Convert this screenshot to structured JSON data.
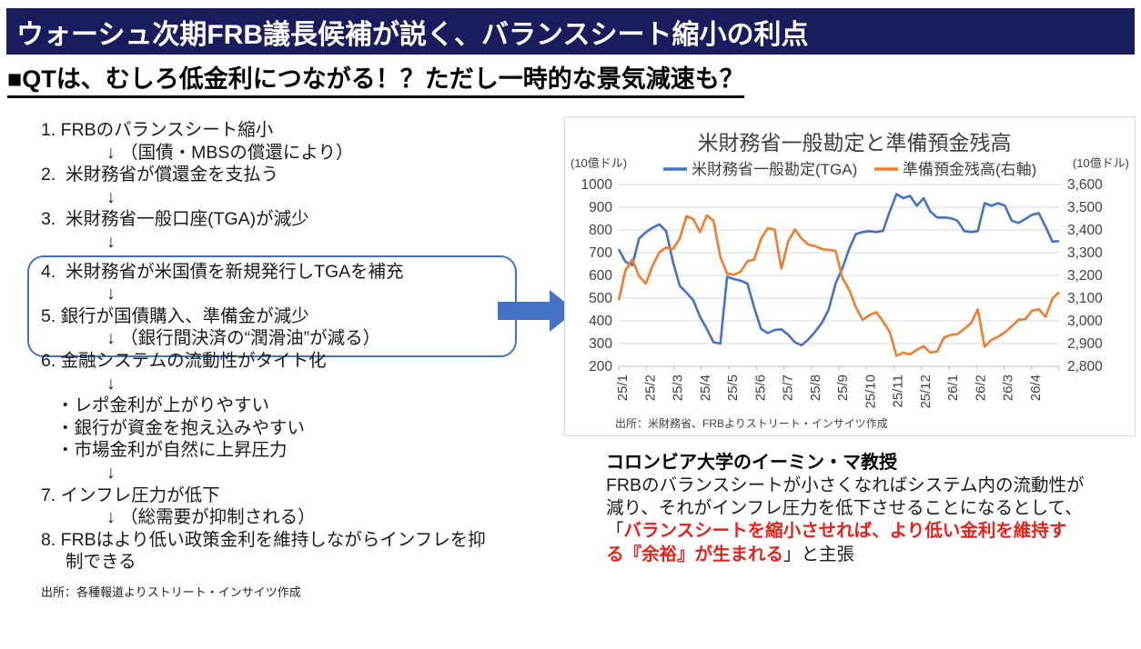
{
  "header": {
    "title": "ウォーシュ次期FRB議長候補が説く、バランスシート縮小の利点",
    "bar_color": "#1b1c5e",
    "subtitle": "■QTは、むしろ低金利につながる！？ただし一時的な景気減速も？"
  },
  "flow": {
    "highlight_box_color": "#4472C4",
    "arrow_color": "#4472C4",
    "lines": [
      {
        "text": "1. FRBのバランスシート縮小",
        "indent": 0,
        "gap": false
      },
      {
        "text": "↓ （国債・MBSの償還により）",
        "indent": 1,
        "gap": false
      },
      {
        "text": "2.  米財務省が償還金を支払う",
        "indent": 0,
        "gap": false
      },
      {
        "text": "↓",
        "indent": 1,
        "gap": false
      },
      {
        "text": "3.  米財務省一般口座(TGA)が減少",
        "indent": 0,
        "gap": false
      },
      {
        "text": "↓",
        "indent": 1,
        "gap": false
      },
      {
        "text": "4.  米財務省が米国債を新規発行しTGAを補充",
        "indent": 0,
        "gap": true
      },
      {
        "text": "↓",
        "indent": 1,
        "gap": false
      },
      {
        "text": "5. 銀行が国債購入、準備金が減少",
        "indent": 0,
        "gap": false
      },
      {
        "text": "↓ （銀行間決済の“潤滑油”が減る）",
        "indent": 1,
        "gap": false
      },
      {
        "text": "6. 金融システムの流動性がタイト化",
        "indent": 0,
        "gap": false
      },
      {
        "text": "↓",
        "indent": 1,
        "gap": false
      },
      {
        "text": "・レポ金利が上がりやすい",
        "indent": 2,
        "gap": false
      },
      {
        "text": "・銀行が資金を抱え込みやすい",
        "indent": 2,
        "gap": false
      },
      {
        "text": "・市場金利が自然に上昇圧力",
        "indent": 2,
        "gap": false
      },
      {
        "text": "↓",
        "indent": 1,
        "gap": false
      },
      {
        "text": "7. インフレ圧力が低下",
        "indent": 0,
        "gap": false
      },
      {
        "text": "↓ （総需要が抑制される）",
        "indent": 1,
        "gap": false
      },
      {
        "text": "8. FRBはより低い政策金利を維持しながらインフレを抑",
        "indent": 0,
        "gap": false
      },
      {
        "text": "制できる",
        "indent": 3,
        "gap": false
      }
    ],
    "source": "出所：各種報道よりストリート・インサイツ作成"
  },
  "chart_data": {
    "type": "line",
    "title": "米財務省一般勘定と準備預金残高",
    "legend_position": "top",
    "grid": true,
    "gridline_color": "#D9D9D9",
    "axis_text_color": "#404040",
    "axis_line_color": "#BFBFBF",
    "left_axis": {
      "unit": "(10億ドル)",
      "min": 200,
      "max": 1000,
      "tick_labels": [
        "1000",
        "900",
        "800",
        "700",
        "600",
        "500",
        "400",
        "300",
        "200"
      ]
    },
    "right_axis": {
      "unit": "(10億ドル)",
      "min": 2800,
      "max": 3600,
      "tick_labels": [
        "3,600",
        "3,500",
        "3,400",
        "3,300",
        "3,200",
        "3,100",
        "3,000",
        "2,900",
        "2,800"
      ]
    },
    "x_tick_labels": [
      "25/1",
      "25/2",
      "25/3",
      "25/4",
      "25/5",
      "25/6",
      "25/7",
      "25/8",
      "25/9",
      "25/10",
      "25/11",
      "25/12",
      "26/1",
      "26/2",
      "26/3",
      "26/4"
    ],
    "points_per_month": 4,
    "series": [
      {
        "name": "米財務省一般勘定(TGA)",
        "color": "#4472C4",
        "axis": "left",
        "values": [
          715,
          660,
          645,
          762,
          790,
          810,
          825,
          795,
          660,
          555,
          524,
          491,
          418,
          365,
          306,
          300,
          594,
          584,
          577,
          564,
          458,
          365,
          346,
          360,
          363,
          339,
          306,
          293,
          319,
          352,
          392,
          451,
          564,
          630,
          716,
          782,
          791,
          795,
          791,
          796,
          881,
          958,
          940,
          950,
          907,
          940,
          881,
          855,
          855,
          852,
          841,
          795,
          791,
          795,
          918,
          907,
          918,
          907,
          841,
          831,
          848,
          867,
          874,
          815,
          749,
          751
        ]
      },
      {
        "name": "準備預金残高(右軸)",
        "color": "#ED7D31",
        "axis": "right",
        "values": [
          3091,
          3223,
          3270,
          3197,
          3164,
          3243,
          3303,
          3323,
          3316,
          3362,
          3461,
          3448,
          3390,
          3465,
          3440,
          3280,
          3208,
          3203,
          3217,
          3263,
          3270,
          3362,
          3408,
          3402,
          3230,
          3349,
          3402,
          3362,
          3336,
          3329,
          3316,
          3312,
          3309,
          3190,
          3137,
          3060,
          3005,
          3025,
          3038,
          2998,
          2952,
          2846,
          2860,
          2853,
          2873,
          2889,
          2860,
          2866,
          2926,
          2939,
          2942,
          2965,
          2990,
          3051,
          2886,
          2916,
          2930,
          2950,
          2976,
          3005,
          3008,
          3045,
          3051,
          3018,
          3098,
          3127
        ]
      }
    ],
    "source": "出所：米財務省、FRBよりストリート・インサイツ作成"
  },
  "commentary": {
    "heading": "コロンビア大学のイーミン・マ教授",
    "red_color": "#e2231a",
    "lines": [
      [
        {
          "t": "FRBのバランスシートが小さくなればシステム内の流動性が",
          "s": "black"
        }
      ],
      [
        {
          "t": "減り、それがインフレ圧力を低下させることになるとして、",
          "s": "black"
        }
      ],
      [
        {
          "t": "「",
          "s": "black"
        },
        {
          "t": "バランスシートを縮小させれば、より低い金利を維持す",
          "s": "red"
        }
      ],
      [
        {
          "t": "る『余裕』が生まれる",
          "s": "red"
        },
        {
          "t": "」と主張",
          "s": "black"
        }
      ]
    ]
  }
}
